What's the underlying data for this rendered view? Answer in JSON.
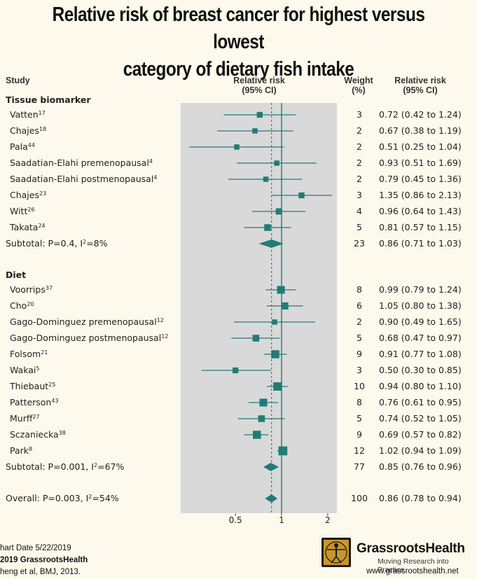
{
  "title_line1": "Relative risk of breast cancer for highest versus lowest",
  "title_line2": "category of dietary fish intake",
  "headers": {
    "study": "Study",
    "rr_line1": "Relative risk",
    "rr_line2": "(95% CI)",
    "weight_line1": "Weight",
    "weight_line2": "(%)",
    "rrci_line1": "Relative risk",
    "rrci_line2": "(95% CI)"
  },
  "chart_data": {
    "type": "forest",
    "x_scale": "log",
    "x_ticks": [
      0.5,
      1,
      2
    ],
    "x_tick_labels": [
      "0.5",
      "1",
      "2"
    ],
    "reference_line": 1,
    "overall_estimate_line": 0.86,
    "groups": [
      {
        "name": "Tissue biomarker",
        "studies": [
          {
            "label": "Vatten",
            "ref": "17",
            "weight": "3",
            "rr": 0.72,
            "lo": 0.42,
            "hi": 1.24,
            "ci_text": "0.72 (0.42 to 1.24)"
          },
          {
            "label": "Chajes",
            "ref": "18",
            "weight": "2",
            "rr": 0.67,
            "lo": 0.38,
            "hi": 1.19,
            "ci_text": "0.67 (0.38 to 1.19)"
          },
          {
            "label": "Pala",
            "ref": "44",
            "weight": "2",
            "rr": 0.51,
            "lo": 0.25,
            "hi": 1.04,
            "ci_text": "0.51 (0.25 to 1.04)"
          },
          {
            "label": "Saadatian-Elahi premenopausal",
            "ref": "4",
            "weight": "2",
            "rr": 0.93,
            "lo": 0.51,
            "hi": 1.69,
            "ci_text": "0.93 (0.51 to 1.69)"
          },
          {
            "label": "Saadatian-Elahi postmenopausal",
            "ref": "4",
            "weight": "2",
            "rr": 0.79,
            "lo": 0.45,
            "hi": 1.36,
            "ci_text": "0.79 (0.45 to 1.36)"
          },
          {
            "label": "Chajes",
            "ref": "23",
            "weight": "3",
            "rr": 1.35,
            "lo": 0.86,
            "hi": 2.13,
            "ci_text": "1.35 (0.86 to 2.13)"
          },
          {
            "label": "Witt",
            "ref": "26",
            "weight": "4",
            "rr": 0.96,
            "lo": 0.64,
            "hi": 1.43,
            "ci_text": "0.96 (0.64 to 1.43)"
          },
          {
            "label": "Takata",
            "ref": "24",
            "weight": "5",
            "rr": 0.81,
            "lo": 0.57,
            "hi": 1.15,
            "ci_text": "0.81 (0.57 to 1.15)"
          }
        ],
        "subtotal": {
          "label_prefix": "Subtotal: P=0.4, I",
          "label_sup": "2",
          "label_suffix": "=8%",
          "weight": "23",
          "rr": 0.86,
          "lo": 0.71,
          "hi": 1.03,
          "ci_text": "0.86 (0.71 to 1.03)"
        }
      },
      {
        "name": "Diet",
        "studies": [
          {
            "label": "Voorrips",
            "ref": "37",
            "weight": "8",
            "rr": 0.99,
            "lo": 0.79,
            "hi": 1.24,
            "ci_text": "0.99 (0.79 to 1.24)"
          },
          {
            "label": "Cho",
            "ref": "20",
            "weight": "6",
            "rr": 1.05,
            "lo": 0.8,
            "hi": 1.38,
            "ci_text": "1.05 (0.80 to 1.38)"
          },
          {
            "label": "Gago-Dominguez premenopausal",
            "ref": "12",
            "weight": "2",
            "rr": 0.9,
            "lo": 0.49,
            "hi": 1.65,
            "ci_text": "0.90 (0.49 to 1.65)"
          },
          {
            "label": "Gago-Dominguez postmenopausal",
            "ref": "12",
            "weight": "5",
            "rr": 0.68,
            "lo": 0.47,
            "hi": 0.97,
            "ci_text": "0.68 (0.47 to 0.97)"
          },
          {
            "label": "Folsom",
            "ref": "21",
            "weight": "9",
            "rr": 0.91,
            "lo": 0.77,
            "hi": 1.08,
            "ci_text": "0.91 (0.77 to 1.08)"
          },
          {
            "label": "Wakai",
            "ref": "5",
            "weight": "3",
            "rr": 0.5,
            "lo": 0.3,
            "hi": 0.85,
            "ci_text": "0.50 (0.30 to 0.85)"
          },
          {
            "label": "Thiebaut",
            "ref": "25",
            "weight": "10",
            "rr": 0.94,
            "lo": 0.8,
            "hi": 1.1,
            "ci_text": "0.94 (0.80 to 1.10)"
          },
          {
            "label": "Patterson",
            "ref": "43",
            "weight": "8",
            "rr": 0.76,
            "lo": 0.61,
            "hi": 0.95,
            "ci_text": "0.76 (0.61 to 0.95)"
          },
          {
            "label": "Murff",
            "ref": "27",
            "weight": "5",
            "rr": 0.74,
            "lo": 0.52,
            "hi": 1.05,
            "ci_text": "0.74 (0.52 to 1.05)"
          },
          {
            "label": "Sczaniecka",
            "ref": "38",
            "weight": "9",
            "rr": 0.69,
            "lo": 0.57,
            "hi": 0.82,
            "ci_text": "0.69 (0.57 to 0.82)"
          },
          {
            "label": "Park",
            "ref": "8",
            "weight": "12",
            "rr": 1.02,
            "lo": 0.94,
            "hi": 1.09,
            "ci_text": "1.02 (0.94 to 1.09)"
          }
        ],
        "subtotal": {
          "label_prefix": "Subtotal: P=0.001, I",
          "label_sup": "2",
          "label_suffix": "=67%",
          "weight": "77",
          "rr": 0.85,
          "lo": 0.76,
          "hi": 0.96,
          "ci_text": "0.85 (0.76 to 0.96)"
        }
      }
    ],
    "overall": {
      "label_prefix": "Overall: P=0.003, I",
      "label_sup": "2",
      "label_suffix": "=54%",
      "weight": "100",
      "rr": 0.86,
      "lo": 0.78,
      "hi": 0.94,
      "ci_text": "0.86 (0.78 to 0.94)"
    }
  },
  "footer": {
    "line1": "hart Date 5/22/2019",
    "line2": "2019 GrassrootsHealth",
    "line3": "heng et al, BMJ, 2013."
  },
  "logo": {
    "name": "GrassrootsHealth",
    "tagline": "Moving Research into Practice",
    "url": "www.grassrootshealth.net"
  },
  "colors": {
    "marker": "#227b77",
    "panel": "#d9d9d9",
    "background": "#fdf9ec"
  }
}
